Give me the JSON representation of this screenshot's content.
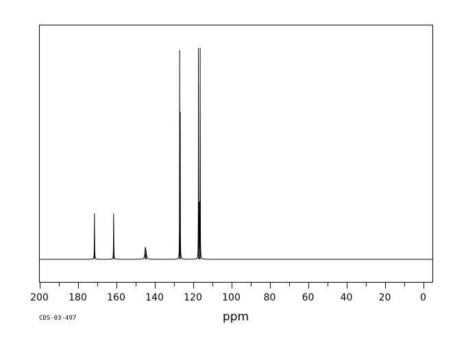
{
  "chart_data": {
    "type": "line",
    "xlabel": "ppm",
    "x_reversed": true,
    "xlim": [
      200,
      -5
    ],
    "ylim": [
      0,
      100
    ],
    "baseline": 0,
    "x_ticks": [
      200,
      180,
      160,
      140,
      120,
      100,
      80,
      60,
      40,
      20,
      0
    ],
    "x_minor_step": 10,
    "peaks": [
      {
        "ppm": 171.3,
        "height": 21.5,
        "width": 0.08
      },
      {
        "ppm": 161.3,
        "height": 21.5,
        "width": 0.08
      },
      {
        "ppm": 144.8,
        "height": 5.0,
        "width": 0.25
      },
      {
        "ppm": 144.4,
        "height": 2.5,
        "width": 0.25
      },
      {
        "ppm": 126.9,
        "height": 98.0,
        "width": 0.05
      },
      {
        "ppm": 126.6,
        "height": 69.0,
        "width": 0.05
      },
      {
        "ppm": 117.1,
        "height": 99.0,
        "width": 0.05
      },
      {
        "ppm": 116.6,
        "height": 27.0,
        "width": 0.05
      },
      {
        "ppm": 116.2,
        "height": 99.0,
        "width": 0.05
      }
    ],
    "line_color": "#000000"
  },
  "footer_id": "CDS-03-497"
}
